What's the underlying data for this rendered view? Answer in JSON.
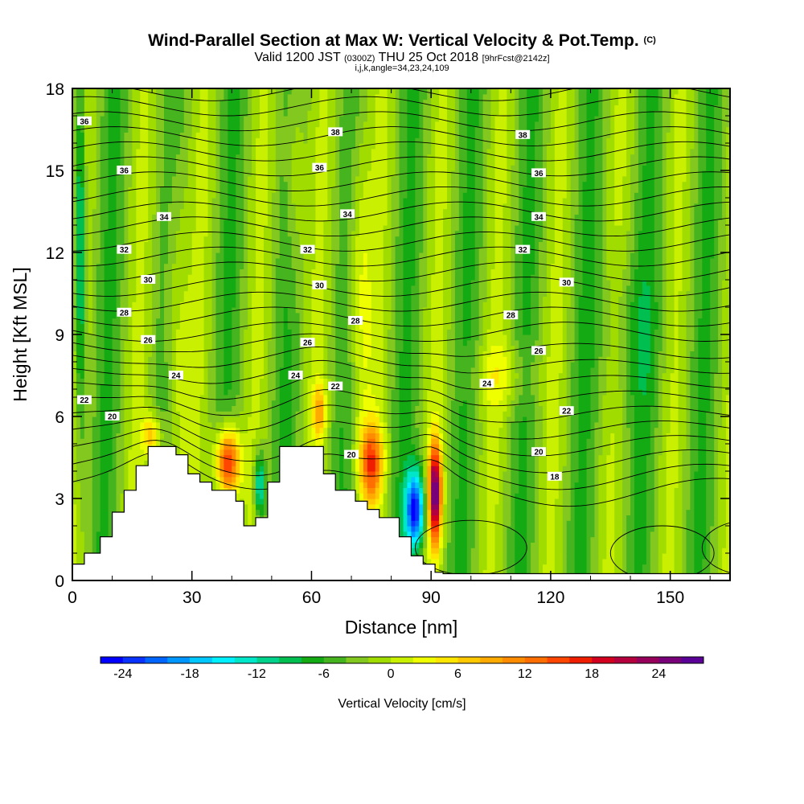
{
  "chart_data": {
    "type": "heatmap",
    "title": "Wind-Parallel Section at Max W: Vertical Velocity & Pot.Temp.",
    "title_suffix": "(C)",
    "subtitle_parts": [
      "Valid 1200 JST",
      "(0300Z)",
      "THU 25 Oct 2018",
      "[9hrFcst@2142z]"
    ],
    "subtitle2": "i,j,k,angle=34,23,24,109",
    "xlabel": "Distance [nm]",
    "ylabel": "Height [Kft MSL]",
    "xlim": [
      0,
      165
    ],
    "ylim": [
      0,
      18
    ],
    "x_ticks": [
      "0",
      "30",
      "60",
      "90",
      "120",
      "150"
    ],
    "y_ticks": [
      "0",
      "3",
      "6",
      "9",
      "12",
      "15",
      "18"
    ],
    "colorbar": {
      "label": "Vertical Velocity [cm/s]",
      "ticks": [
        "-24",
        "-18",
        "-12",
        "-6",
        "0",
        "6",
        "12",
        "18",
        "24"
      ],
      "min": -26,
      "max": 28,
      "step": 2,
      "colors": [
        "#0000ff",
        "#0a32ff",
        "#0064ff",
        "#0096ff",
        "#00c8ff",
        "#00f0ff",
        "#00e6c8",
        "#00d28c",
        "#00be50",
        "#14aa14",
        "#46b41e",
        "#82c81e",
        "#a0dc00",
        "#c8f000",
        "#f0ff00",
        "#ffe600",
        "#ffc800",
        "#ffaa00",
        "#ff8c00",
        "#ff6e00",
        "#ff4600",
        "#f01e00",
        "#d2001e",
        "#b4003c",
        "#96005a",
        "#780078",
        "#5a0096"
      ]
    },
    "theta_labels": [
      {
        "x": 3,
        "y": 16.8,
        "text": "36"
      },
      {
        "x": 13,
        "y": 15.0,
        "text": "36"
      },
      {
        "x": 23,
        "y": 13.3,
        "text": "34"
      },
      {
        "x": 13,
        "y": 12.1,
        "text": "32"
      },
      {
        "x": 19,
        "y": 11.0,
        "text": "30"
      },
      {
        "x": 13,
        "y": 9.8,
        "text": "28"
      },
      {
        "x": 19,
        "y": 8.8,
        "text": "26"
      },
      {
        "x": 26,
        "y": 7.5,
        "text": "24"
      },
      {
        "x": 3,
        "y": 6.6,
        "text": "22"
      },
      {
        "x": 10,
        "y": 6.0,
        "text": "20"
      },
      {
        "x": 66,
        "y": 16.4,
        "text": "38"
      },
      {
        "x": 62,
        "y": 15.1,
        "text": "36"
      },
      {
        "x": 69,
        "y": 13.4,
        "text": "34"
      },
      {
        "x": 59,
        "y": 12.1,
        "text": "32"
      },
      {
        "x": 62,
        "y": 10.8,
        "text": "30"
      },
      {
        "x": 71,
        "y": 9.5,
        "text": "28"
      },
      {
        "x": 59,
        "y": 8.7,
        "text": "26"
      },
      {
        "x": 56,
        "y": 7.5,
        "text": "24"
      },
      {
        "x": 66,
        "y": 7.1,
        "text": "22"
      },
      {
        "x": 70,
        "y": 4.6,
        "text": "20"
      },
      {
        "x": 113,
        "y": 16.3,
        "text": "38"
      },
      {
        "x": 117,
        "y": 14.9,
        "text": "36"
      },
      {
        "x": 117,
        "y": 13.3,
        "text": "34"
      },
      {
        "x": 113,
        "y": 12.1,
        "text": "32"
      },
      {
        "x": 124,
        "y": 10.9,
        "text": "30"
      },
      {
        "x": 110,
        "y": 9.7,
        "text": "28"
      },
      {
        "x": 117,
        "y": 8.4,
        "text": "26"
      },
      {
        "x": 104,
        "y": 7.2,
        "text": "24"
      },
      {
        "x": 124,
        "y": 6.2,
        "text": "22"
      },
      {
        "x": 117,
        "y": 4.7,
        "text": "20"
      },
      {
        "x": 121,
        "y": 3.8,
        "text": "18"
      }
    ]
  }
}
